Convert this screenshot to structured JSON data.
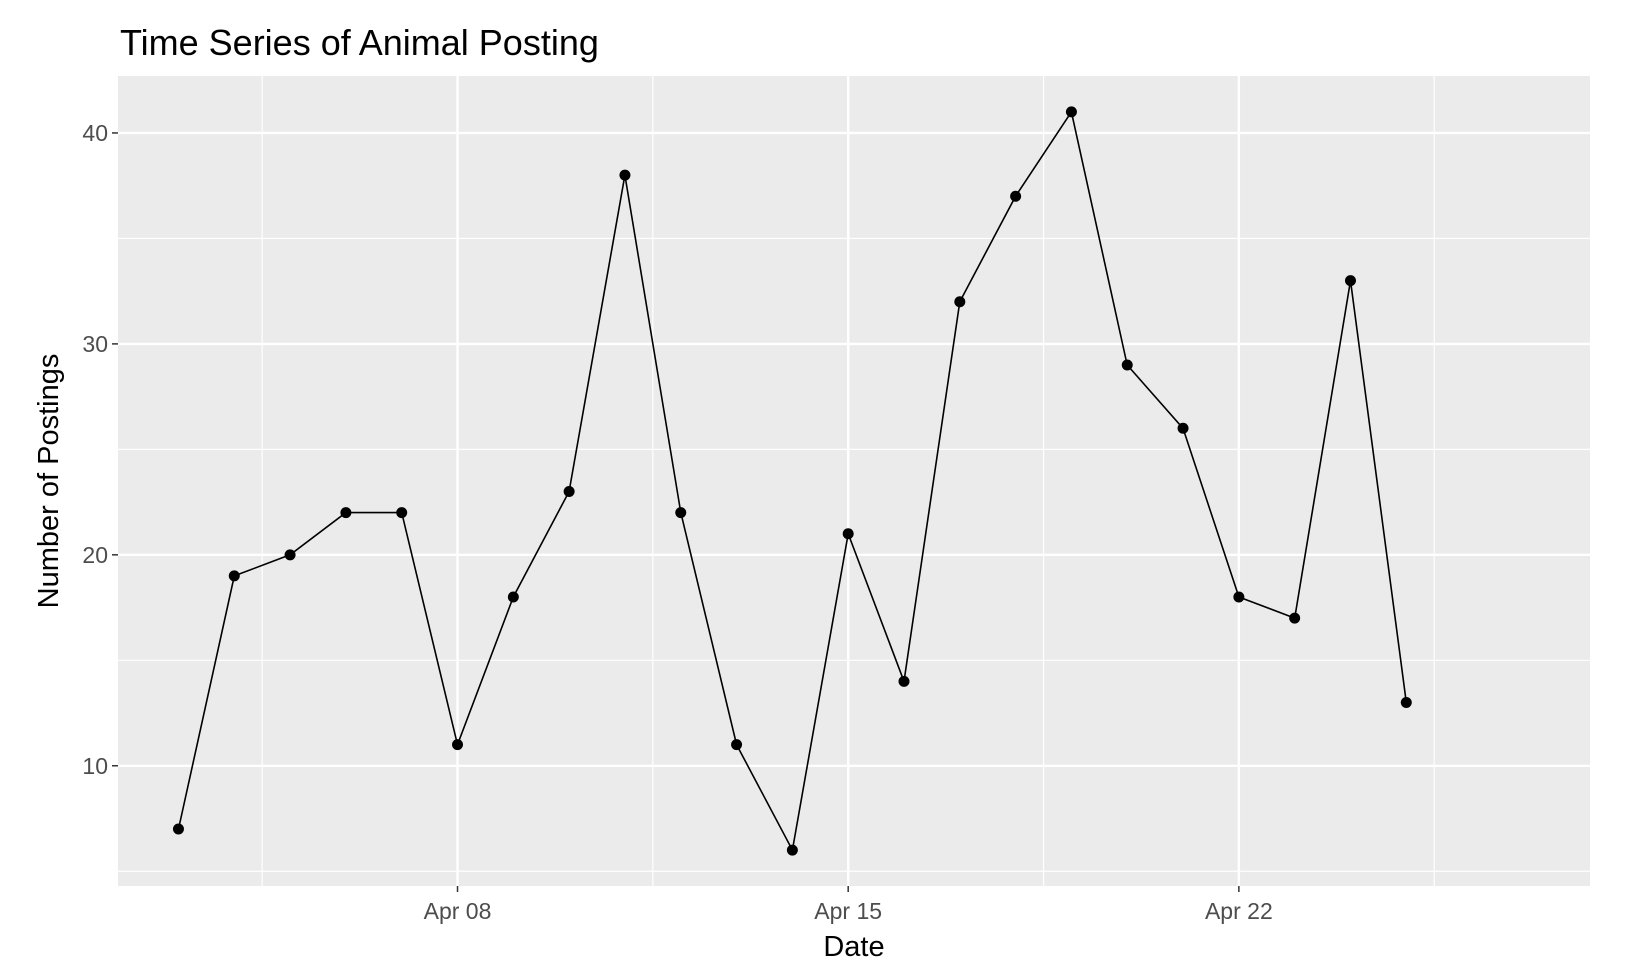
{
  "chart_data": {
    "type": "line",
    "title": "Time Series of Animal Posting",
    "xlabel": "Date",
    "ylabel": "Number of Postings",
    "x_tick_labels": [
      {
        "date": "2017-04-08",
        "label": "Apr 08"
      },
      {
        "date": "2017-04-15",
        "label": "Apr 15"
      },
      {
        "date": "2017-04-22",
        "label": "Apr 22"
      }
    ],
    "y_ticks": [
      10,
      20,
      30,
      40
    ],
    "ylim": [
      4.3,
      42.7
    ],
    "xlim": [
      "2017-04-01T22:00",
      "2017-04-28T07:00"
    ],
    "grid": true,
    "legend": "none",
    "colors": {
      "panel": "#ebebeb",
      "grid": "#ffffff",
      "line": "#000000",
      "tick_label": "#4d4d4d"
    },
    "points": [
      {
        "date": "2017-04-03",
        "value": 7
      },
      {
        "date": "2017-04-04",
        "value": 19
      },
      {
        "date": "2017-04-05",
        "value": 20
      },
      {
        "date": "2017-04-06",
        "value": 22
      },
      {
        "date": "2017-04-07",
        "value": 22
      },
      {
        "date": "2017-04-08",
        "value": 11
      },
      {
        "date": "2017-04-09",
        "value": 18
      },
      {
        "date": "2017-04-10",
        "value": 23
      },
      {
        "date": "2017-04-11",
        "value": 38
      },
      {
        "date": "2017-04-12",
        "value": 22
      },
      {
        "date": "2017-04-13",
        "value": 11
      },
      {
        "date": "2017-04-14",
        "value": 6
      },
      {
        "date": "2017-04-15",
        "value": 21
      },
      {
        "date": "2017-04-16",
        "value": 14
      },
      {
        "date": "2017-04-17",
        "value": 32
      },
      {
        "date": "2017-04-18",
        "value": 37
      },
      {
        "date": "2017-04-19",
        "value": 41
      },
      {
        "date": "2017-04-20",
        "value": 29
      },
      {
        "date": "2017-04-21",
        "value": 26
      },
      {
        "date": "2017-04-22",
        "value": 18
      },
      {
        "date": "2017-04-23",
        "value": 17
      },
      {
        "date": "2017-04-24",
        "value": 33
      },
      {
        "date": "2017-04-25",
        "value": 13
      }
    ]
  }
}
